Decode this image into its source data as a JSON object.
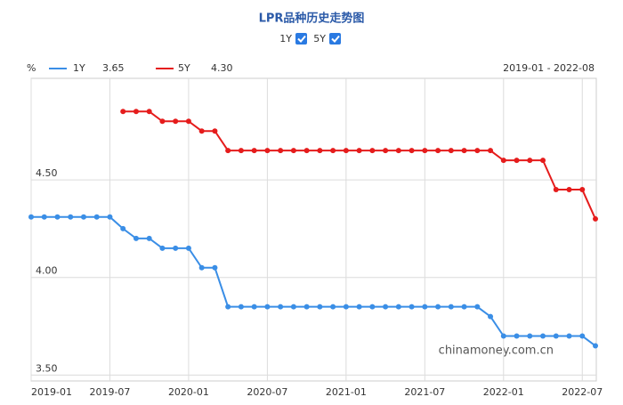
{
  "chart_data": {
    "type": "line",
    "title": "LPR品种历史走势图",
    "y_label": "%",
    "range_label": "2019-01 - 2022-08",
    "watermark": "chinamoney.com.cn",
    "x": [
      "2019-01",
      "2019-02",
      "2019-03",
      "2019-04",
      "2019-05",
      "2019-06",
      "2019-07",
      "2019-08",
      "2019-09",
      "2019-10",
      "2019-11",
      "2019-12",
      "2020-01",
      "2020-02",
      "2020-03",
      "2020-04",
      "2020-05",
      "2020-06",
      "2020-07",
      "2020-08",
      "2020-09",
      "2020-10",
      "2020-11",
      "2020-12",
      "2021-01",
      "2021-02",
      "2021-03",
      "2021-04",
      "2021-05",
      "2021-06",
      "2021-07",
      "2021-08",
      "2021-09",
      "2021-10",
      "2021-11",
      "2021-12",
      "2022-01",
      "2022-02",
      "2022-03",
      "2022-04",
      "2022-05",
      "2022-06",
      "2022-07",
      "2022-08"
    ],
    "xticks": [
      "2019-01",
      "2019-07",
      "2020-01",
      "2020-07",
      "2021-01",
      "2021-07",
      "2022-01",
      "2022-07"
    ],
    "series": [
      {
        "name": "1Y",
        "color": "#3a8ee6",
        "last_label": "3.65",
        "values": [
          4.31,
          4.31,
          4.31,
          4.31,
          4.31,
          4.31,
          4.31,
          4.25,
          4.2,
          4.2,
          4.15,
          4.15,
          4.15,
          4.05,
          4.05,
          3.85,
          3.85,
          3.85,
          3.85,
          3.85,
          3.85,
          3.85,
          3.85,
          3.85,
          3.85,
          3.85,
          3.85,
          3.85,
          3.85,
          3.85,
          3.85,
          3.85,
          3.85,
          3.85,
          3.85,
          3.8,
          3.7,
          3.7,
          3.7,
          3.7,
          3.7,
          3.7,
          3.7,
          3.65
        ]
      },
      {
        "name": "5Y",
        "color": "#e51c1c",
        "last_label": "4.30",
        "values": [
          null,
          null,
          null,
          null,
          null,
          null,
          null,
          4.85,
          4.85,
          4.85,
          4.8,
          4.8,
          4.8,
          4.75,
          4.75,
          4.65,
          4.65,
          4.65,
          4.65,
          4.65,
          4.65,
          4.65,
          4.65,
          4.65,
          4.65,
          4.65,
          4.65,
          4.65,
          4.65,
          4.65,
          4.65,
          4.65,
          4.65,
          4.65,
          4.65,
          4.65,
          4.6,
          4.6,
          4.6,
          4.6,
          4.45,
          4.45,
          4.45,
          4.3
        ]
      }
    ],
    "ylim": [
      3.47,
      5.02
    ],
    "yticks": [
      {
        "value": 3.5,
        "label": "3.50"
      },
      {
        "value": 4,
        "label": "4.00"
      },
      {
        "value": 4.5,
        "label": "4.50"
      }
    ],
    "grid": true
  }
}
